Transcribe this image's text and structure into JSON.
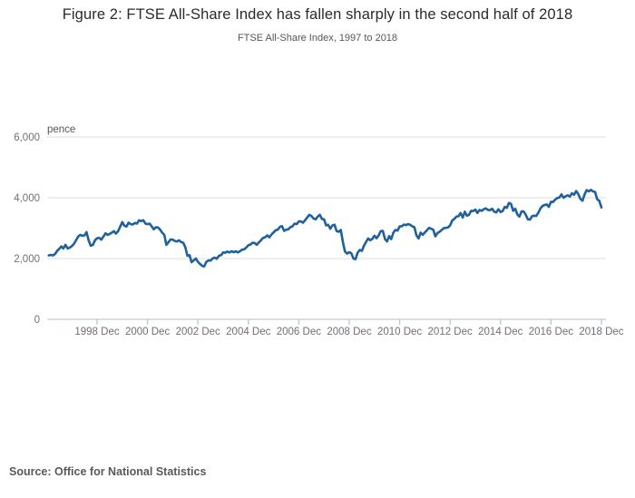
{
  "header": {
    "title": "Figure 2: FTSE All-Share Index has fallen sharply in the second half of 2018",
    "subtitle": "FTSE All-Share Index, 1997 to 2018"
  },
  "footer": {
    "source_label": "Source: Office for National Statistics"
  },
  "chart_data": {
    "type": "line",
    "title": "Figure 2: FTSE All-Share Index has fallen sharply in the second half of 2018",
    "subtitle": "FTSE All-Share Index, 1997 to 2018",
    "unit_label": "pence",
    "ylabel": "pence",
    "xlabel": "",
    "grid": true,
    "legend": "none",
    "ylim": [
      0,
      6000
    ],
    "xlim": [
      1996.98,
      2019.14
    ],
    "y_ticks": [
      {
        "value": 0,
        "label": "0"
      },
      {
        "value": 2000,
        "label": "2,000"
      },
      {
        "value": 4000,
        "label": "4,000"
      },
      {
        "value": 6000,
        "label": "6,000"
      }
    ],
    "x_ticks": [
      {
        "year": 1998,
        "label": "1998 Dec"
      },
      {
        "year": 2000,
        "label": "2000 Dec"
      },
      {
        "year": 2002,
        "label": "2002 Dec"
      },
      {
        "year": 2004,
        "label": "2004 Dec"
      },
      {
        "year": 2006,
        "label": "2006 Dec"
      },
      {
        "year": 2008,
        "label": "2008 Dec"
      },
      {
        "year": 2010,
        "label": "2010 Dec"
      },
      {
        "year": 2012,
        "label": "2012 Dec"
      },
      {
        "year": 2014,
        "label": "2014 Dec"
      },
      {
        "year": 2016,
        "label": "2016 Dec"
      },
      {
        "year": 2018,
        "label": "2018 Dec"
      }
    ],
    "series": [
      {
        "name": "FTSE All-Share Index",
        "frequency": "monthly",
        "start_year": 1997,
        "end_year": 2018,
        "values": [
          2100,
          2120,
          2100,
          2150,
          2250,
          2320,
          2400,
          2330,
          2450,
          2330,
          2360,
          2410,
          2480,
          2600,
          2720,
          2780,
          2750,
          2760,
          2870,
          2600,
          2420,
          2450,
          2600,
          2670,
          2680,
          2620,
          2720,
          2830,
          2780,
          2810,
          2850,
          2900,
          2820,
          2900,
          3050,
          3200,
          3080,
          3050,
          3180,
          3130,
          3120,
          3170,
          3150,
          3260,
          3230,
          3260,
          3150,
          3130,
          3150,
          3060,
          2960,
          3030,
          3020,
          2950,
          2850,
          2780,
          2450,
          2540,
          2630,
          2620,
          2580,
          2560,
          2600,
          2540,
          2520,
          2370,
          2090,
          2110,
          1880,
          1940,
          2000,
          1890,
          1820,
          1760,
          1740,
          1890,
          1940,
          1930,
          2000,
          2030,
          1990,
          2090,
          2110,
          2200,
          2190,
          2230,
          2200,
          2240,
          2210,
          2240,
          2200,
          2240,
          2290,
          2300,
          2360,
          2440,
          2460,
          2520,
          2510,
          2450,
          2530,
          2600,
          2680,
          2700,
          2760,
          2700,
          2790,
          2860,
          2930,
          2950,
          3040,
          3070,
          2910,
          2950,
          2960,
          3030,
          3060,
          3150,
          3130,
          3220,
          3220,
          3180,
          3260,
          3350,
          3440,
          3400,
          3320,
          3290,
          3380,
          3440,
          3300,
          3290,
          3090,
          3110,
          2980,
          3090,
          3110,
          2900,
          2880,
          2940,
          2540,
          2230,
          2160,
          2210,
          2170,
          2000,
          1980,
          2190,
          2280,
          2250,
          2420,
          2540,
          2660,
          2600,
          2650,
          2750,
          2670,
          2760,
          2900,
          2910,
          2640,
          2560,
          2740,
          2640,
          2850,
          2940,
          2920,
          3060,
          3060,
          3120,
          3100,
          3130,
          3110,
          3060,
          3030,
          2760,
          2660,
          2850,
          2780,
          2860,
          2930,
          3010,
          2980,
          2950,
          2730,
          2840,
          2880,
          2940,
          3000,
          3010,
          3020,
          3090,
          3250,
          3300,
          3380,
          3390,
          3500,
          3350,
          3540,
          3410,
          3440,
          3570,
          3560,
          3610,
          3500,
          3600,
          3570,
          3620,
          3650,
          3600,
          3590,
          3640,
          3540,
          3520,
          3620,
          3530,
          3560,
          3700,
          3670,
          3830,
          3800,
          3570,
          3640,
          3450,
          3380,
          3550,
          3550,
          3440,
          3290,
          3280,
          3390,
          3410,
          3400,
          3510,
          3650,
          3730,
          3760,
          3780,
          3700,
          3870,
          3860,
          3940,
          3990,
          4010,
          4110,
          4000,
          4050,
          4080,
          4040,
          4150,
          4100,
          4220,
          4120,
          3960,
          3900,
          4110,
          4250,
          4210,
          4260,
          4210,
          4190,
          3950,
          3900,
          3680
        ]
      }
    ],
    "colors": {
      "line": "#20609b",
      "grid": "#dedede",
      "axis": "#c4ccd8",
      "tick_mark": "#b9c4d6",
      "axis_label": "#707070",
      "unit_label": "#555555",
      "title": "#2b2b2b",
      "subtitle": "#555555",
      "source": "#595959"
    }
  }
}
